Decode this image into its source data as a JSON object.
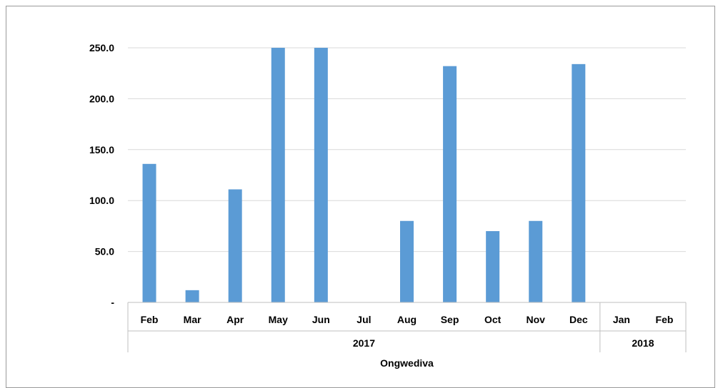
{
  "chart_data": {
    "type": "bar",
    "title": "",
    "xlabel": "Ongwediva",
    "ylabel": "",
    "categories": [
      "Feb",
      "Mar",
      "Apr",
      "May",
      "Jun",
      "Jul",
      "Aug",
      "Sep",
      "Oct",
      "Nov",
      "Dec",
      "Jan",
      "Feb"
    ],
    "groups": [
      {
        "label": "2017",
        "start": 0,
        "count": 11
      },
      {
        "label": "2018",
        "start": 11,
        "count": 2
      }
    ],
    "values": [
      136,
      12,
      111,
      250,
      250,
      0,
      80,
      232,
      70,
      80,
      234,
      0,
      0
    ],
    "ylim": [
      0,
      250
    ],
    "yticks": [
      0,
      50,
      100,
      150,
      200,
      250
    ],
    "ytick_labels": [
      "-",
      "50.0",
      "100.0",
      "150.0",
      "200.0",
      "250.0"
    ],
    "grid": true,
    "bar_color": "#5b9bd5"
  }
}
